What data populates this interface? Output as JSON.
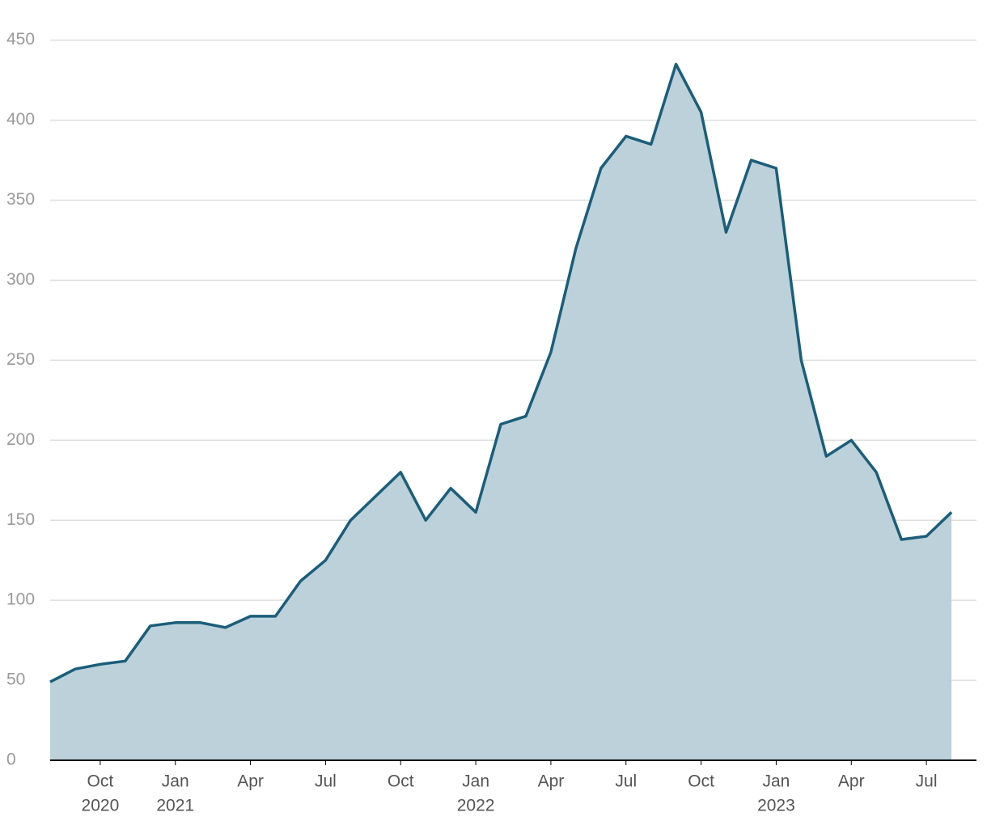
{
  "chart_data": {
    "type": "area",
    "x": [
      "2020-08",
      "2020-09",
      "2020-10",
      "2020-11",
      "2020-12",
      "2021-01",
      "2021-02",
      "2021-03",
      "2021-04",
      "2021-05",
      "2021-06",
      "2021-07",
      "2021-08",
      "2021-09",
      "2021-10",
      "2021-11",
      "2021-12",
      "2022-01",
      "2022-02",
      "2022-03",
      "2022-04",
      "2022-05",
      "2022-06",
      "2022-07",
      "2022-08",
      "2022-09",
      "2022-10",
      "2022-11",
      "2022-12",
      "2023-01",
      "2023-02",
      "2023-03",
      "2023-04",
      "2023-05",
      "2023-06",
      "2023-07",
      "2023-08"
    ],
    "values": [
      49,
      57,
      60,
      62,
      84,
      86,
      86,
      83,
      90,
      90,
      112,
      125,
      150,
      165,
      180,
      150,
      170,
      155,
      210,
      215,
      255,
      320,
      370,
      390,
      385,
      435,
      405,
      330,
      375,
      370,
      250,
      190,
      200,
      180,
      138,
      140,
      155
    ],
    "color": "#1a5e7a",
    "fill_color": "#b8cfd8",
    "xlim": [
      "2020-08",
      "2023-09"
    ],
    "xticks": [
      {
        "value": "2020-10",
        "label": [
          "Oct",
          "2020"
        ]
      },
      {
        "value": "2021-01",
        "label": [
          "Jan",
          "2021"
        ]
      },
      {
        "value": "2021-04",
        "label": [
          "Apr"
        ]
      },
      {
        "value": "2021-07",
        "label": [
          "Jul"
        ]
      },
      {
        "value": "2021-10",
        "label": [
          "Oct"
        ]
      },
      {
        "value": "2022-01",
        "label": [
          "Jan",
          "2022"
        ]
      },
      {
        "value": "2022-04",
        "label": [
          "Apr"
        ]
      },
      {
        "value": "2022-07",
        "label": [
          "Jul"
        ]
      },
      {
        "value": "2022-10",
        "label": [
          "Oct"
        ]
      },
      {
        "value": "2023-01",
        "label": [
          "Jan",
          "2023"
        ]
      },
      {
        "value": "2023-04",
        "label": [
          "Apr"
        ]
      },
      {
        "value": "2023-07",
        "label": [
          "Jul"
        ]
      }
    ],
    "ylim": [
      0,
      465
    ],
    "yticks": [
      0,
      50,
      100,
      150,
      200,
      250,
      300,
      350,
      400,
      450
    ],
    "grid": true
  }
}
